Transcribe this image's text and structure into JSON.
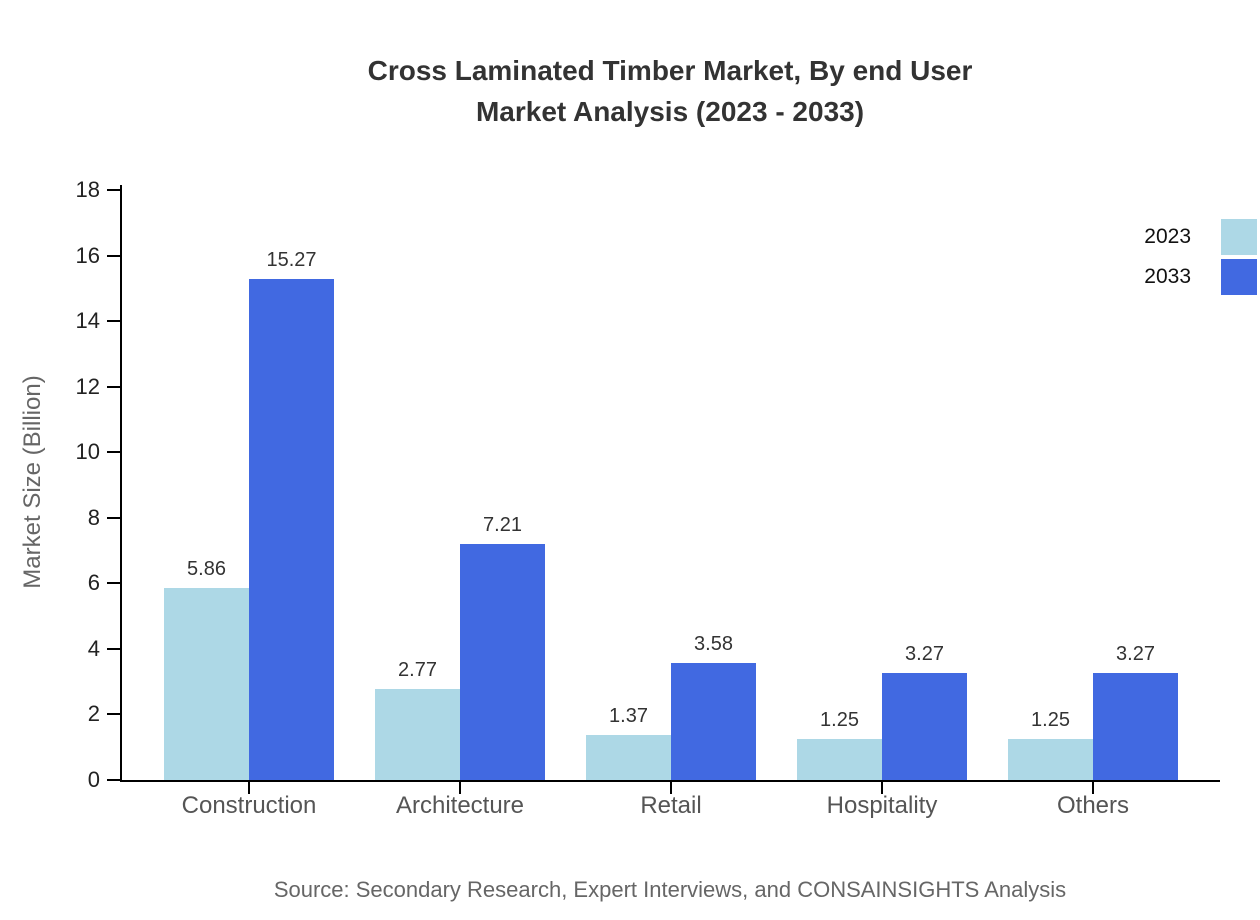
{
  "title": {
    "line1": "Cross Laminated Timber Market, By end User",
    "line2": "Market Analysis (2023 - 2033)"
  },
  "source": "Source: Secondary Research, Expert Interviews, and CONSAINSIGHTS Analysis",
  "chart_data": {
    "type": "bar",
    "categories": [
      "Construction",
      "Architecture",
      "Retail",
      "Hospitality",
      "Others"
    ],
    "series": [
      {
        "name": "2023",
        "color": "#ADD8E6",
        "values": [
          5.86,
          2.77,
          1.37,
          1.25,
          1.25
        ]
      },
      {
        "name": "2033",
        "color": "#4169E1",
        "values": [
          15.27,
          7.21,
          3.58,
          3.27,
          3.27
        ]
      }
    ],
    "title": "Cross Laminated Timber Market, By end User Market Analysis (2023 - 2033)",
    "xlabel": "",
    "ylabel": "Market Size (Billion)",
    "ylim": [
      0,
      18
    ],
    "ytick_step": 2,
    "yticks": [
      0,
      2,
      4,
      6,
      8,
      10,
      12,
      14,
      16,
      18
    ],
    "grid": false,
    "legend_position": "top-right",
    "value_labels": true
  },
  "colors": {
    "series_2023": "#ADD8E6",
    "series_2033": "#4169E1",
    "axis": "#000000",
    "title_text": "#333333",
    "tick_text": "#222222",
    "category_text": "#555555",
    "value_label_text": "#333333",
    "axis_title_text": "#666666",
    "source_text": "#666666",
    "background": "#FFFFFF"
  }
}
